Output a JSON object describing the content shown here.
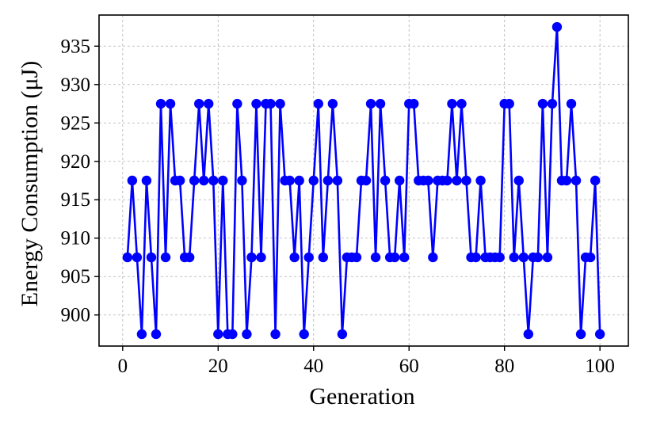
{
  "chart_data": {
    "type": "line",
    "title": "",
    "xlabel": "Generation",
    "ylabel": "Energy Consumption (μJ)",
    "xlim": [
      -4.95,
      105.95
    ],
    "ylim": [
      895.95,
      939.05
    ],
    "xticks": [
      0,
      20,
      40,
      60,
      80,
      100
    ],
    "yticks": [
      900,
      905,
      910,
      915,
      920,
      925,
      930,
      935
    ],
    "grid": true,
    "legend": "none",
    "series": [
      {
        "color": "#0000ff",
        "marker": "circle",
        "x": [
          1,
          2,
          3,
          4,
          5,
          6,
          7,
          8,
          9,
          10,
          11,
          12,
          13,
          14,
          15,
          16,
          17,
          18,
          19,
          20,
          21,
          22,
          23,
          24,
          25,
          26,
          27,
          28,
          29,
          30,
          31,
          32,
          33,
          34,
          35,
          36,
          37,
          38,
          39,
          40,
          41,
          42,
          43,
          44,
          45,
          46,
          47,
          48,
          49,
          50,
          51,
          52,
          53,
          54,
          55,
          56,
          57,
          58,
          59,
          60,
          61,
          62,
          63,
          64,
          65,
          66,
          67,
          68,
          69,
          70,
          71,
          72,
          73,
          74,
          75,
          76,
          77,
          78,
          79,
          80,
          81,
          82,
          83,
          84,
          85,
          86,
          87,
          88,
          89,
          90,
          91,
          92,
          93,
          94,
          95,
          96,
          97,
          98,
          99,
          100
        ],
        "y": [
          907.5,
          917.5,
          907.5,
          897.5,
          917.5,
          907.5,
          897.5,
          927.5,
          907.5,
          927.5,
          917.5,
          917.5,
          907.5,
          907.5,
          917.5,
          927.5,
          917.5,
          927.5,
          917.5,
          897.5,
          917.5,
          897.5,
          897.5,
          927.5,
          917.5,
          897.5,
          907.5,
          927.5,
          907.5,
          927.5,
          927.5,
          897.5,
          927.5,
          917.5,
          917.5,
          907.5,
          917.5,
          897.5,
          907.5,
          917.5,
          927.5,
          907.5,
          917.5,
          927.5,
          917.5,
          897.5,
          907.5,
          907.5,
          907.5,
          917.5,
          917.5,
          927.5,
          907.5,
          927.5,
          917.5,
          907.5,
          907.5,
          917.5,
          907.5,
          927.5,
          927.5,
          917.5,
          917.5,
          917.5,
          907.5,
          917.5,
          917.5,
          917.5,
          927.5,
          917.5,
          927.5,
          917.5,
          907.5,
          907.5,
          917.5,
          907.5,
          907.5,
          907.5,
          907.5,
          927.5,
          927.5,
          907.5,
          917.5,
          907.5,
          897.5,
          907.5,
          907.5,
          927.5,
          907.5,
          927.5,
          937.5,
          917.5,
          917.5,
          927.5,
          917.5,
          897.5,
          907.5,
          907.5,
          917.5,
          897.5
        ]
      }
    ]
  }
}
